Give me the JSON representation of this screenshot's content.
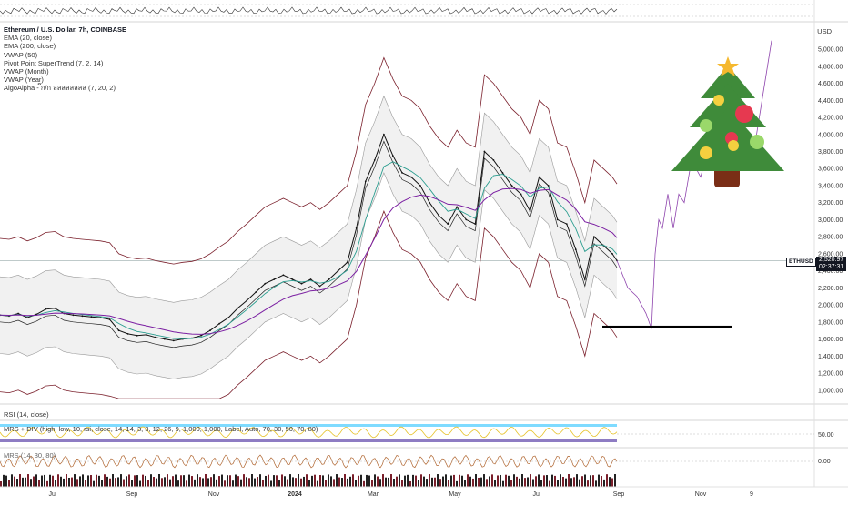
{
  "chart_data": [
    {
      "type": "line",
      "symbol": "Ethereum / U.S. Dollar, 7h, COINBASE",
      "ticker": "ETHUSD",
      "last_price": "2,520.97",
      "countdown": "02:37:31",
      "currency": "USD",
      "indicators": [
        "EMA (20, close)",
        "EMA (200, close)",
        "VWAP (50)",
        "Pivot Point SuperTrend (7, 2, 14)",
        "VWAP (Month)",
        "VWAP (Year)",
        "AlgoAlpha - ๊ก/ก ลลลลลลลล (7, 20, 2)"
      ],
      "yticks": [
        1000,
        1200,
        1400,
        1600,
        1800,
        2000,
        2200,
        2400,
        2600,
        2800,
        3000,
        3200,
        3400,
        3600,
        3800,
        4000,
        4200,
        4400,
        4600,
        4800,
        5000
      ],
      "ytick_labels": [
        "1,000.00",
        "1,200.00",
        "1,400.00",
        "1,600.00",
        "1,800.00",
        "2,000.00",
        "2,200.00",
        "2,400.00",
        "2,600.00",
        "2,800.00",
        "3,000.00",
        "3,200.00",
        "3,400.00",
        "3,600.00",
        "3,800.00",
        "4,000.00",
        "4,200.00",
        "4,400.00",
        "4,600.00",
        "4,800.00",
        "5,000.00"
      ],
      "ylim": [
        880,
        5300
      ],
      "xtick_labels": [
        "Jul",
        "Sep",
        "Nov",
        "2024",
        "Mar",
        "May",
        "Jul",
        "Sep",
        "Nov",
        "9"
      ],
      "x": [
        0,
        10,
        20,
        30,
        40,
        50,
        60,
        70,
        80,
        90,
        100,
        110,
        120,
        130,
        140,
        150,
        160,
        170,
        180,
        190,
        200,
        210,
        220,
        230,
        240,
        250,
        260,
        270,
        280,
        290,
        300,
        310,
        320,
        330,
        340,
        350,
        360,
        370,
        380,
        390,
        400,
        410,
        420,
        430,
        440,
        450,
        460,
        470,
        480,
        490,
        500,
        510,
        520,
        530,
        540,
        550,
        560,
        570,
        580,
        590,
        600,
        610,
        620,
        630,
        640,
        650,
        660,
        670,
        675
      ],
      "series": [
        {
          "values": [
            1880,
            1870,
            1900,
            1850,
            1890,
            1950,
            1960,
            1900,
            1880,
            1870,
            1860,
            1850,
            1830,
            1700,
            1660,
            1640,
            1650,
            1620,
            1600,
            1580,
            1600,
            1610,
            1640,
            1700,
            1780,
            1850,
            1960,
            2050,
            2150,
            2250,
            2300,
            2350,
            2300,
            2250,
            2300,
            2220,
            2300,
            2400,
            2500,
            2900,
            3450,
            3700,
            4000,
            3750,
            3550,
            3500,
            3400,
            3200,
            3050,
            2950,
            3150,
            3000,
            2950,
            3800,
            3700,
            3550,
            3400,
            3300,
            3100,
            3500,
            3400,
            3000,
            2950,
            2650,
            2300,
            2800,
            2700,
            2600,
            2520
          ]
        }
      ]
    },
    {
      "type": "line",
      "title": "RSI (14, close)"
    },
    {
      "type": "line",
      "title": "MRS + DIV (high, low, 10, rsi, close, 14, 14, 3, 3, 12, 26, 9, 1,000, 1,000, Label, Auto, 70, 30, 50, 70, 80)",
      "yticks": [
        50
      ],
      "ytick_labels": [
        "50.00"
      ]
    },
    {
      "type": "line",
      "title": "MRS (14, 30, 80)",
      "yticks": [
        0
      ],
      "ytick_labels": [
        "0.00"
      ]
    }
  ],
  "colors": {
    "ema20": "#2a9d8f",
    "ema200": "#7b1fa2",
    "vwap": "#222222",
    "band_outer": "#7a1f2b",
    "band_fill": "#e8e8e8",
    "projection": "#8e44ad",
    "rsi_yellow": "#e6c229",
    "rsi_band": "#7fdbff",
    "mrs_line": "#b0652f"
  }
}
